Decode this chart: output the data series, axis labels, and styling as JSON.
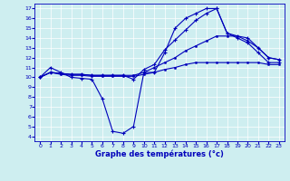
{
  "title": "Graphe des températures (°c)",
  "background_color": "#ceeef0",
  "line_color": "#0000bb",
  "xlim": [
    -0.5,
    23.5
  ],
  "ylim": [
    3.5,
    17.5
  ],
  "xticks": [
    0,
    1,
    2,
    3,
    4,
    5,
    6,
    7,
    8,
    9,
    10,
    11,
    12,
    13,
    14,
    15,
    16,
    17,
    18,
    19,
    20,
    21,
    22,
    23
  ],
  "yticks": [
    4,
    5,
    6,
    7,
    8,
    9,
    10,
    11,
    12,
    13,
    14,
    15,
    16,
    17
  ],
  "curve_main_x": [
    0,
    1,
    2,
    3,
    4,
    5,
    6,
    7,
    8,
    9,
    10,
    11,
    12,
    13,
    14,
    15,
    16,
    17,
    18,
    19,
    20,
    21,
    22,
    23
  ],
  "curve_main_y": [
    10.0,
    11.0,
    10.5,
    10.0,
    9.9,
    9.8,
    7.8,
    4.5,
    4.3,
    5.0,
    10.5,
    10.5,
    12.5,
    15.0,
    16.0,
    16.5,
    17.0,
    17.0,
    14.5,
    14.0,
    13.5,
    12.5,
    11.5,
    11.5
  ],
  "curve_low_x": [
    0,
    1,
    2,
    3,
    4,
    5,
    6,
    7,
    8,
    9,
    10,
    11,
    12,
    13,
    14,
    15,
    16,
    17,
    18,
    19,
    20,
    21,
    22,
    23
  ],
  "curve_low_y": [
    10.0,
    10.5,
    10.3,
    10.2,
    10.2,
    10.1,
    10.1,
    10.1,
    10.1,
    10.1,
    10.3,
    10.5,
    10.8,
    11.0,
    11.3,
    11.5,
    11.5,
    11.5,
    11.5,
    11.5,
    11.5,
    11.5,
    11.3,
    11.3
  ],
  "curve_mid_x": [
    0,
    1,
    2,
    3,
    4,
    5,
    6,
    7,
    8,
    9,
    10,
    11,
    12,
    13,
    14,
    15,
    16,
    17,
    18,
    19,
    20,
    21,
    22,
    23
  ],
  "curve_mid_y": [
    10.0,
    10.5,
    10.4,
    10.3,
    10.3,
    10.2,
    10.2,
    10.2,
    10.2,
    10.2,
    10.5,
    11.0,
    11.5,
    12.0,
    12.7,
    13.2,
    13.7,
    14.2,
    14.2,
    14.2,
    13.7,
    13.0,
    12.0,
    11.8
  ],
  "curve_high_x": [
    0,
    1,
    2,
    3,
    4,
    5,
    6,
    7,
    8,
    9,
    10,
    11,
    12,
    13,
    14,
    15,
    16,
    17,
    18,
    19,
    20,
    21,
    22,
    23
  ],
  "curve_high_y": [
    10.0,
    10.5,
    10.4,
    10.3,
    10.3,
    10.2,
    10.2,
    10.2,
    10.2,
    9.8,
    10.8,
    11.3,
    12.8,
    13.8,
    14.8,
    15.8,
    16.5,
    17.0,
    14.5,
    14.2,
    14.0,
    13.0,
    12.0,
    11.8
  ]
}
